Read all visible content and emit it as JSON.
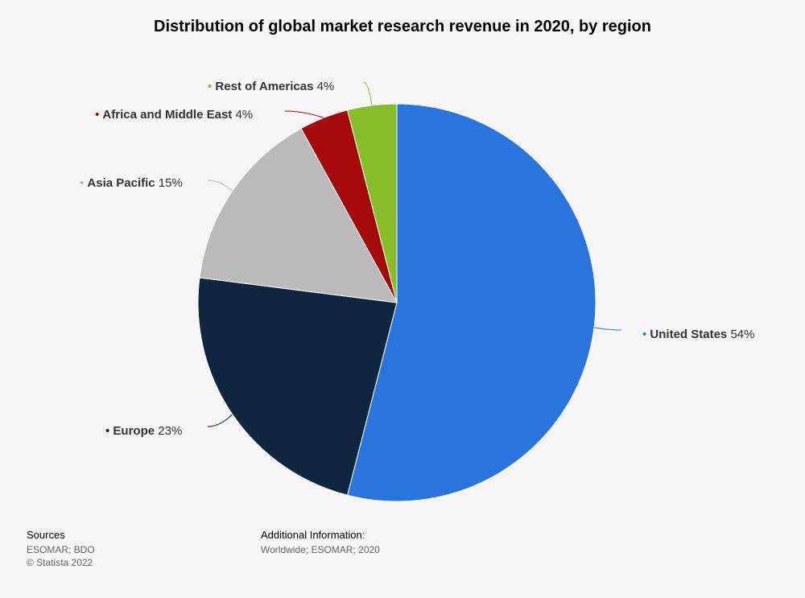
{
  "chart_data": {
    "type": "pie",
    "title": "Distribution of global market research revenue in 2020, by region",
    "unit": "%",
    "slices": [
      {
        "name": "United States",
        "value": 54,
        "color": "#2876dd"
      },
      {
        "name": "Europe",
        "value": 23,
        "color": "#10263e"
      },
      {
        "name": "Asia Pacific",
        "value": 15,
        "color": "#bababa"
      },
      {
        "name": "Africa and Middle East",
        "value": 4,
        "color": "#a50a0a"
      },
      {
        "name": "Rest of Americas",
        "value": 4,
        "color": "#87bd27"
      }
    ]
  },
  "footer": {
    "sources_heading": "Sources",
    "sources_text": "ESOMAR; BDO",
    "copyright": "© Statista 2022",
    "additional_heading": "Additional Information:",
    "additional_text": "Worldwide; ESOMAR; 2020"
  }
}
